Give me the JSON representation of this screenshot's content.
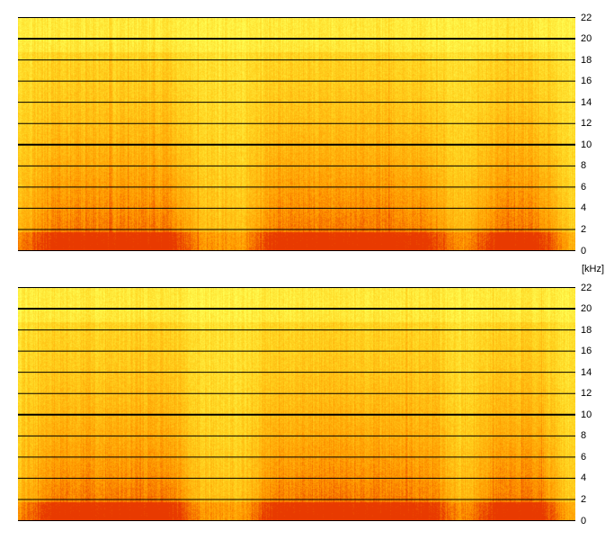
{
  "chart_data": [
    {
      "type": "heatmap",
      "title": "",
      "xlabel": "",
      "ylabel": "",
      "y_unit": "[kHz]",
      "ylim": [
        0,
        22
      ],
      "y_ticks": [
        "0",
        "2",
        "4",
        "6",
        "8",
        "10",
        "12",
        "14",
        "16",
        "18",
        "20",
        "22"
      ],
      "colormap": [
        "#ffff55",
        "#ffd21e",
        "#ff9a00",
        "#e83a00"
      ],
      "energy_envelope": [
        0.55,
        1.0,
        1.0,
        1.0,
        1.0,
        0.5,
        0.45,
        1.0,
        1.0,
        1.0,
        1.0,
        0.95,
        0.5,
        1.0,
        1.0,
        0.3
      ],
      "grid": true
    },
    {
      "type": "heatmap",
      "title": "",
      "xlabel": "",
      "ylabel": "",
      "y_unit": "[kHz]",
      "ylim": [
        0,
        22
      ],
      "y_ticks": [
        "0",
        "2",
        "4",
        "6",
        "8",
        "10",
        "12",
        "14",
        "16",
        "18",
        "20",
        "22"
      ],
      "colormap": [
        "#ffff55",
        "#ffd21e",
        "#ff9a00",
        "#e83a00"
      ],
      "energy_envelope": [
        0.55,
        1.0,
        1.0,
        1.0,
        1.0,
        0.5,
        0.45,
        1.0,
        1.0,
        1.0,
        1.0,
        0.95,
        0.5,
        1.0,
        1.0,
        0.3
      ],
      "grid": true
    }
  ],
  "unit_label": "[kHz]"
}
